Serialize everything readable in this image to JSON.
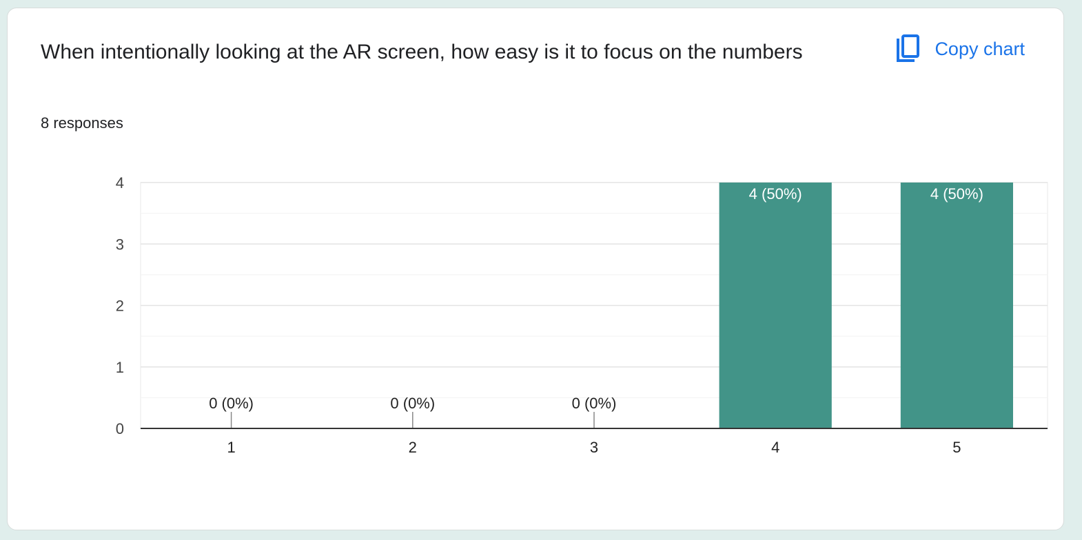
{
  "card": {
    "title": "When intentionally looking at the AR screen, how easy is it to focus on the numbers",
    "responses": "8 responses",
    "copy_button": {
      "label": "Copy chart",
      "icon": "copy-icon"
    }
  },
  "colors": {
    "bar": "#429488",
    "accent": "#1a73e8",
    "background": "#e0eeec"
  },
  "chart_data": {
    "type": "bar",
    "title": "When intentionally looking at the AR screen, how easy is it to focus on the numbers",
    "categories": [
      "1",
      "2",
      "3",
      "4",
      "5"
    ],
    "values": [
      0,
      0,
      0,
      4,
      4
    ],
    "data_labels": [
      "0 (0%)",
      "0 (0%)",
      "0 (0%)",
      "4 (50%)",
      "4 (50%)"
    ],
    "y_ticks": [
      0,
      1,
      2,
      3,
      4
    ],
    "ylim": [
      0,
      4
    ],
    "xlabel": "",
    "ylabel": "",
    "grid": true,
    "legend": "none"
  }
}
